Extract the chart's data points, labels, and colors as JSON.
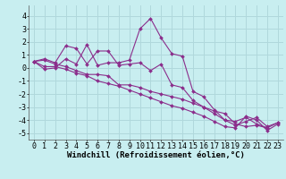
{
  "background_color": "#c8eef0",
  "grid_color": "#b0d8dc",
  "line_color": "#8b2d8b",
  "marker_color": "#8b2d8b",
  "xlabel": "Windchill (Refroidissement éolien,°C)",
  "xlabel_fontsize": 6.5,
  "tick_fontsize": 6,
  "xlim": [
    -0.5,
    23.5
  ],
  "ylim": [
    -5.5,
    4.8
  ],
  "yticks": [
    -5,
    -4,
    -3,
    -2,
    -1,
    0,
    1,
    2,
    3,
    4
  ],
  "xticks": [
    0,
    1,
    2,
    3,
    4,
    5,
    6,
    7,
    8,
    9,
    10,
    11,
    12,
    13,
    14,
    15,
    16,
    17,
    18,
    19,
    20,
    21,
    22,
    23
  ],
  "series": [
    {
      "x": [
        0,
        1,
        2,
        3,
        4,
        5,
        6,
        7,
        8,
        9,
        10,
        11,
        12,
        13,
        14,
        15,
        16,
        17,
        18,
        19,
        20,
        21,
        22,
        23
      ],
      "y": [
        0.5,
        -0.1,
        0.0,
        0.7,
        0.3,
        1.8,
        0.2,
        0.4,
        0.4,
        0.6,
        3.0,
        3.8,
        2.3,
        1.1,
        0.9,
        -1.8,
        -2.2,
        -3.2,
        -4.0,
        -4.4,
        -4.1,
        -3.8,
        -4.5,
        -4.2
      ]
    },
    {
      "x": [
        0,
        1,
        2,
        3,
        4,
        5,
        6,
        7,
        8,
        9,
        10,
        11,
        12,
        13,
        14,
        15,
        16,
        17,
        18,
        19,
        20,
        21,
        22,
        23
      ],
      "y": [
        0.5,
        0.7,
        0.4,
        1.7,
        1.5,
        0.3,
        1.3,
        1.3,
        0.2,
        0.3,
        0.4,
        -0.2,
        0.3,
        -1.3,
        -1.5,
        -2.5,
        -3.0,
        -3.5,
        -4.0,
        -4.1,
        -3.8,
        -4.3,
        -4.6,
        -4.2
      ]
    },
    {
      "x": [
        0,
        1,
        2,
        3,
        4,
        5,
        6,
        7,
        8,
        9,
        10,
        11,
        12,
        13,
        14,
        15,
        16,
        17,
        18,
        19,
        20,
        21,
        22
      ],
      "y": [
        0.5,
        0.6,
        0.3,
        0.1,
        -0.2,
        -0.5,
        -0.5,
        -0.6,
        -1.3,
        -1.3,
        -1.5,
        -1.8,
        -2.0,
        -2.2,
        -2.4,
        -2.7,
        -3.0,
        -3.3,
        -3.5,
        -4.3,
        -4.5,
        -4.4,
        -4.6
      ]
    },
    {
      "x": [
        0,
        1,
        2,
        3,
        4,
        5,
        6,
        7,
        8,
        9,
        10,
        11,
        12,
        13,
        14,
        15,
        16,
        17,
        18,
        19,
        20,
        21,
        22,
        23
      ],
      "y": [
        0.5,
        0.1,
        0.1,
        -0.1,
        -0.4,
        -0.6,
        -1.0,
        -1.2,
        -1.4,
        -1.7,
        -2.0,
        -2.3,
        -2.6,
        -2.9,
        -3.1,
        -3.4,
        -3.7,
        -4.1,
        -4.5,
        -4.6,
        -3.7,
        -4.0,
        -4.8,
        -4.3
      ]
    }
  ]
}
